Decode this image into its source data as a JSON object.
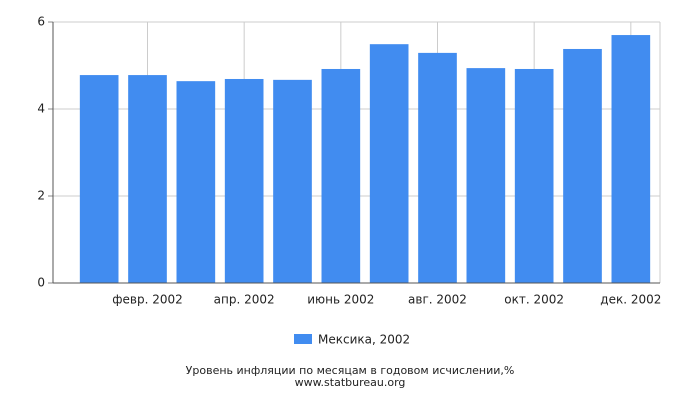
{
  "chart_data": {
    "type": "bar",
    "categories": [
      null,
      "февр. 2002",
      null,
      "апр. 2002",
      null,
      "июнь 2002",
      null,
      "авг. 2002",
      null,
      "окт. 2002",
      null,
      "дек. 2002"
    ],
    "series": [
      {
        "name": "Мексика, 2002",
        "color": "#418cf0",
        "values": [
          4.78,
          4.78,
          4.64,
          4.69,
          4.67,
          4.92,
          5.49,
          5.29,
          4.94,
          4.92,
          5.38,
          5.7
        ]
      }
    ],
    "ylim": [
      0,
      6
    ],
    "yticks": [
      0,
      2,
      4,
      6
    ],
    "grid": true,
    "footer": "Уровень инфляции по месяцам в годовом исчислении,%",
    "source": "www.statbureau.org"
  }
}
